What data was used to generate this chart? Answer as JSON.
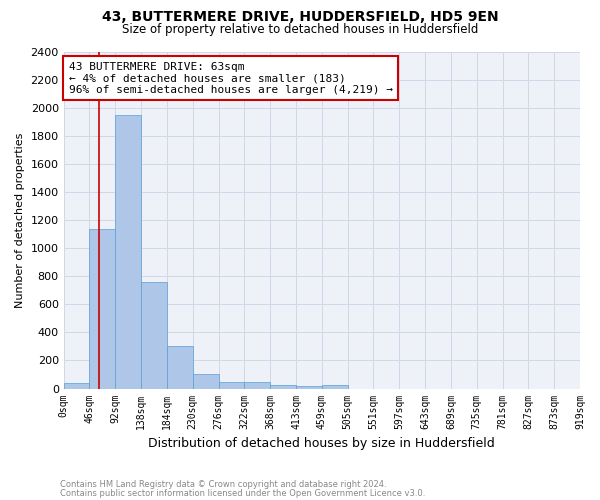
{
  "title1": "43, BUTTERMERE DRIVE, HUDDERSFIELD, HD5 9EN",
  "title2": "Size of property relative to detached houses in Huddersfield",
  "xlabel": "Distribution of detached houses by size in Huddersfield",
  "ylabel": "Number of detached properties",
  "bar_values": [
    40,
    1135,
    1950,
    760,
    305,
    105,
    48,
    45,
    28,
    20,
    22,
    0,
    0,
    0,
    0,
    0,
    0,
    0,
    0,
    0
  ],
  "bar_labels": [
    "0sqm",
    "46sqm",
    "92sqm",
    "138sqm",
    "184sqm",
    "230sqm",
    "276sqm",
    "322sqm",
    "368sqm",
    "413sqm",
    "459sqm",
    "505sqm",
    "551sqm",
    "597sqm",
    "643sqm",
    "689sqm",
    "735sqm",
    "781sqm",
    "827sqm",
    "873sqm",
    "919sqm"
  ],
  "bar_color": "#aec6e8",
  "bar_edge_color": "#5a9fd4",
  "annotation_line1": "43 BUTTERMERE DRIVE: 63sqm",
  "annotation_line2": "← 4% of detached houses are smaller (183)",
  "annotation_line3": "96% of semi-detached houses are larger (4,219) →",
  "annotation_box_color": "#ffffff",
  "annotation_box_edge": "#cc0000",
  "ylim": [
    0,
    2400
  ],
  "yticks": [
    0,
    200,
    400,
    600,
    800,
    1000,
    1200,
    1400,
    1600,
    1800,
    2000,
    2200,
    2400
  ],
  "grid_color": "#d0d8e8",
  "footnote1": "Contains HM Land Registry data © Crown copyright and database right 2024.",
  "footnote2": "Contains public sector information licensed under the Open Government Licence v3.0.",
  "bg_color": "#eef2f8"
}
